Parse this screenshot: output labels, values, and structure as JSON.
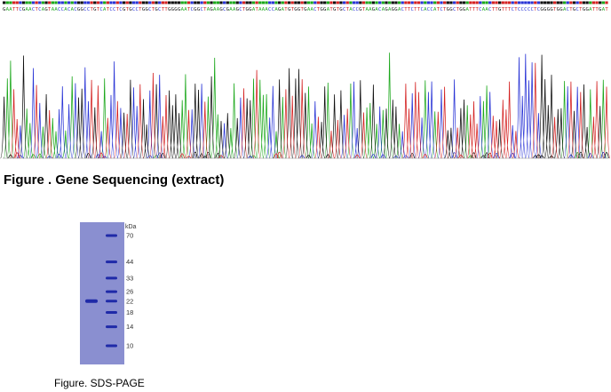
{
  "sequence": {
    "bases": "GAATTCGAACTCAGTAACCACACGGCCTGTCATCCTCGTGCCTGGCTGCTTGGGGAATCGGCTAGAAGCGAAGCTGGATAAACCAGATGTGGTGAACTGGATGTGCTACCGTAAGACAGAGGACTTCTTCACCATCTGGCTGGATTTCAACTTGTTTCTCCCCCTCGGGGTGGACTGCTGGATTGAT",
    "colors": {
      "A": "#1ca81c",
      "C": "#2a35d6",
      "G": "#111111",
      "T": "#d42222"
    }
  },
  "figure1": {
    "caption": "Figure . Gene Sequencing (extract)"
  },
  "gel": {
    "unit_label": "kDa",
    "markers": [
      {
        "label": "70",
        "kda": 70
      },
      {
        "label": "44",
        "kda": 44
      },
      {
        "label": "33",
        "kda": 33
      },
      {
        "label": "26",
        "kda": 26
      },
      {
        "label": "22",
        "kda": 22
      },
      {
        "label": "18",
        "kda": 18
      },
      {
        "label": "14",
        "kda": 14
      },
      {
        "label": "10",
        "kda": 10
      }
    ],
    "sample_band_kda": 22,
    "colors": {
      "gel": "#8a8fd0",
      "band": "#1f2aa8"
    }
  },
  "figure2": {
    "caption": "Figure. SDS-PAGE"
  }
}
